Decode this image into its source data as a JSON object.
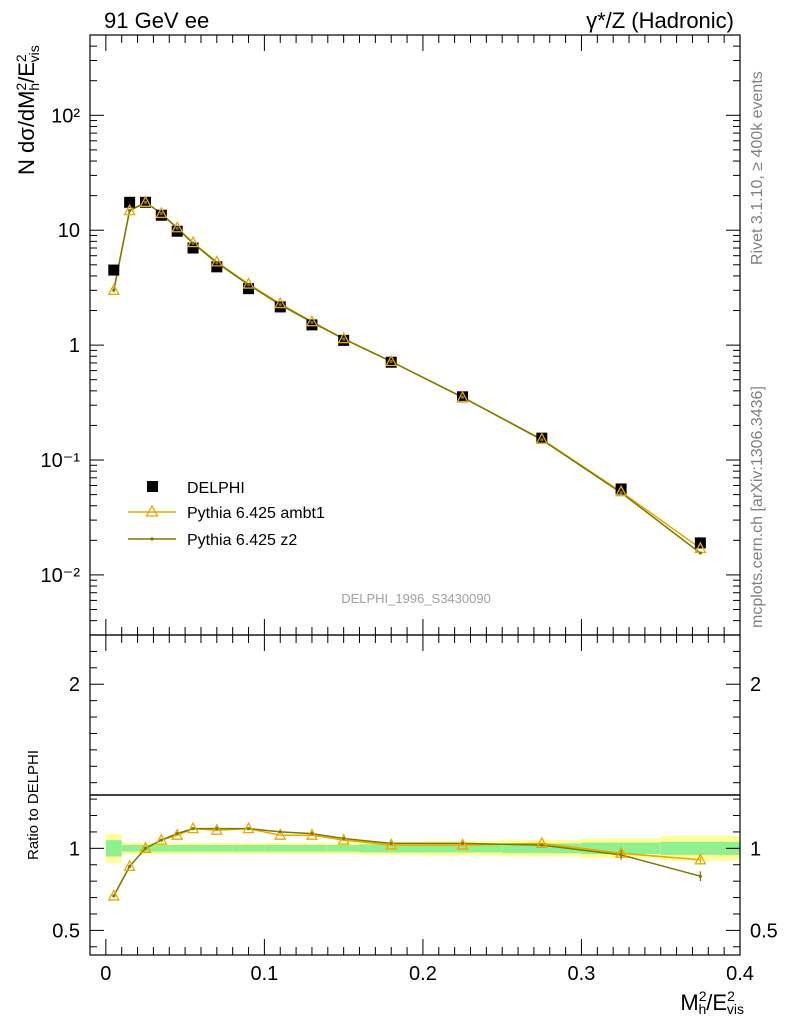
{
  "header": {
    "left": "91 GeV ee",
    "right": "γ*/Z (Hadronic)"
  },
  "side_labels": {
    "rivet": "Rivet 3.1.10, ≥ 400k events",
    "mcplots": "mcplots.cern.ch [arXiv:1306.3436]"
  },
  "watermark": "DELPHI_1996_S3430090",
  "colors": {
    "data": "#000000",
    "ambt1": "#e8a800",
    "z2": "#7a7a00",
    "band_inner": "#90f090",
    "band_outer": "#ffff99"
  },
  "chart_data": [
    {
      "type": "scatter",
      "title": "",
      "ylabel": "N dσ/dM²h/E²vis",
      "xlabel": "",
      "ylim": [
        0.003,
        500
      ],
      "xlim": [
        -0.01,
        0.4
      ],
      "yscale": "log",
      "ytick_labels": [
        "10⁻²",
        "10⁻¹",
        "1",
        "10",
        "10²"
      ],
      "x": [
        0.005,
        0.015,
        0.025,
        0.035,
        0.045,
        0.055,
        0.07,
        0.09,
        0.11,
        0.13,
        0.15,
        0.18,
        0.225,
        0.275,
        0.325,
        0.375
      ],
      "legend_position": "lower-left",
      "series": [
        {
          "name": "DELPHI",
          "values": [
            4.5,
            17.5,
            17.5,
            13.5,
            9.8,
            7.0,
            4.8,
            3.1,
            2.15,
            1.5,
            1.1,
            0.71,
            0.355,
            0.155,
            0.056,
            0.019
          ]
        },
        {
          "name": "Pythia 6.425 ambt1",
          "values": [
            3.0,
            14.8,
            17.5,
            14.0,
            10.5,
            7.8,
            5.3,
            3.4,
            2.3,
            1.6,
            1.14,
            0.72,
            0.35,
            0.152,
            0.053,
            0.017
          ]
        },
        {
          "name": "Pythia 6.425 z2",
          "values": [
            3.0,
            14.8,
            17.5,
            14.0,
            10.4,
            7.7,
            5.2,
            3.35,
            2.25,
            1.58,
            1.13,
            0.72,
            0.352,
            0.15,
            0.052,
            0.0155
          ]
        }
      ]
    },
    {
      "type": "line",
      "title": "",
      "ylabel": "Ratio to DELPHI",
      "xlabel": "M²h/E²vis",
      "ylim": [
        0.35,
        2.3
      ],
      "xlim": [
        -0.01,
        0.4
      ],
      "ytick_labels": [
        "0.5",
        "1",
        "2"
      ],
      "xtick_labels": [
        "0",
        "0.1",
        "0.2",
        "0.3",
        "0.4"
      ],
      "x": [
        0.005,
        0.015,
        0.025,
        0.035,
        0.045,
        0.055,
        0.07,
        0.09,
        0.11,
        0.13,
        0.15,
        0.18,
        0.225,
        0.275,
        0.325,
        0.375
      ],
      "bin_edges": [
        0,
        0.01,
        0.02,
        0.03,
        0.04,
        0.05,
        0.06,
        0.08,
        0.1,
        0.12,
        0.14,
        0.16,
        0.2,
        0.25,
        0.3,
        0.35,
        0.4
      ],
      "band_inner_halfwidth": [
        0.05,
        0.02,
        0.02,
        0.02,
        0.02,
        0.02,
        0.02,
        0.02,
        0.02,
        0.02,
        0.02,
        0.025,
        0.025,
        0.03,
        0.035,
        0.04
      ],
      "band_outer_halfwidth": [
        0.09,
        0.035,
        0.035,
        0.035,
        0.035,
        0.035,
        0.035,
        0.035,
        0.035,
        0.035,
        0.035,
        0.04,
        0.045,
        0.05,
        0.06,
        0.075
      ],
      "series": [
        {
          "name": "Pythia 6.425 ambt1",
          "values": [
            0.71,
            0.89,
            1.0,
            1.05,
            1.08,
            1.12,
            1.11,
            1.12,
            1.08,
            1.08,
            1.05,
            1.02,
            1.02,
            1.03,
            0.97,
            0.93
          ]
        },
        {
          "name": "Pythia 6.425 z2",
          "values": [
            0.71,
            0.89,
            1.0,
            1.05,
            1.09,
            1.12,
            1.12,
            1.12,
            1.1,
            1.09,
            1.06,
            1.03,
            1.03,
            1.02,
            0.96,
            0.83
          ]
        }
      ]
    }
  ]
}
